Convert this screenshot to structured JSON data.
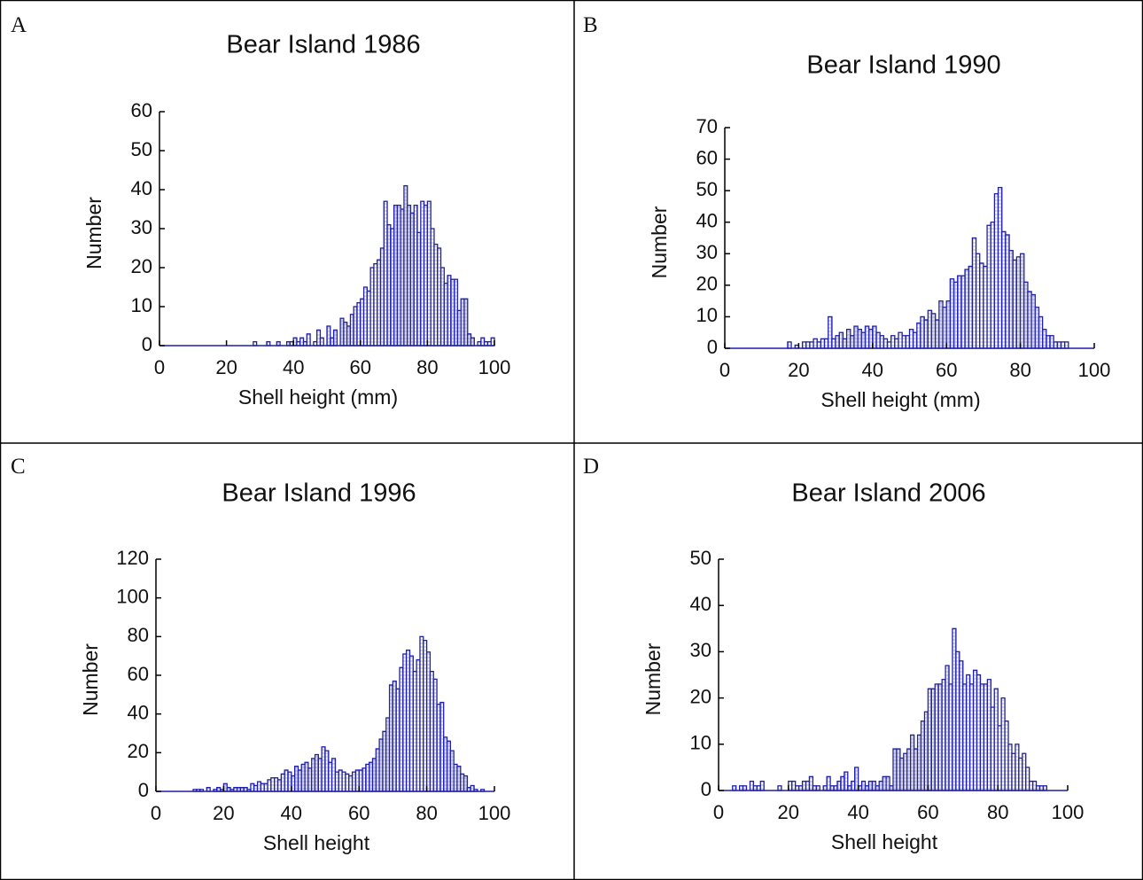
{
  "chart_data": [
    {
      "type": "histogram",
      "panel_label": "A",
      "title": "Bear Island 1986",
      "xlabel": "Shell height (mm)",
      "ylabel": "Number",
      "color": "#1f1fa8",
      "xlim": [
        0,
        100
      ],
      "xticks": [
        0,
        20,
        40,
        60,
        80,
        100
      ],
      "ylim": [
        0,
        60
      ],
      "yticks": [
        0,
        10,
        20,
        30,
        40,
        50,
        60
      ],
      "bins": [
        28,
        29,
        30,
        31,
        32,
        33,
        34,
        35,
        36,
        37,
        38,
        39,
        40,
        41,
        42,
        43,
        44,
        45,
        46,
        47,
        48,
        49,
        50,
        51,
        52,
        53,
        54,
        55,
        56,
        57,
        58,
        59,
        60,
        61,
        62,
        63,
        64,
        65,
        66,
        67,
        68,
        69,
        70,
        71,
        72,
        73,
        74,
        75,
        76,
        77,
        78,
        79,
        80,
        81,
        82,
        83,
        84,
        85,
        86,
        87,
        88,
        89,
        90,
        91,
        92,
        93,
        94,
        95,
        96,
        97,
        98,
        99,
        100
      ],
      "values": [
        1,
        0,
        0,
        0,
        1,
        0,
        0,
        1,
        0,
        0,
        1,
        1,
        2,
        1,
        2,
        1,
        3,
        0,
        1,
        4,
        2,
        0,
        5,
        2,
        4,
        0,
        7,
        6,
        5,
        8,
        10,
        11,
        12,
        15,
        14,
        20,
        21,
        22,
        25,
        37,
        31,
        30,
        36,
        36,
        35,
        41,
        36,
        34,
        36,
        29,
        37,
        36,
        37,
        30,
        26,
        25,
        20,
        16,
        18,
        17,
        17,
        9,
        12,
        12,
        3,
        2,
        0,
        1,
        2,
        1,
        1,
        2
      ]
    },
    {
      "type": "histogram",
      "panel_label": "B",
      "title": "Bear Island 1990",
      "xlabel": "Shell height (mm)",
      "ylabel": "Number",
      "color": "#1f1fa8",
      "xlim": [
        0,
        100
      ],
      "xticks": [
        0,
        20,
        40,
        60,
        80,
        100
      ],
      "ylim": [
        0,
        70
      ],
      "yticks": [
        0,
        10,
        20,
        30,
        40,
        50,
        60,
        70
      ],
      "bins": [
        17,
        18,
        19,
        20,
        21,
        22,
        23,
        24,
        25,
        26,
        27,
        28,
        29,
        30,
        31,
        32,
        33,
        34,
        35,
        36,
        37,
        38,
        39,
        40,
        41,
        42,
        43,
        44,
        45,
        46,
        47,
        48,
        49,
        50,
        51,
        52,
        53,
        54,
        55,
        56,
        57,
        58,
        59,
        60,
        61,
        62,
        63,
        64,
        65,
        66,
        67,
        68,
        69,
        70,
        71,
        72,
        73,
        74,
        75,
        76,
        77,
        78,
        79,
        80,
        81,
        82,
        83,
        84,
        85,
        86,
        87,
        88,
        89,
        90,
        91,
        92,
        93
      ],
      "values": [
        2,
        0,
        1,
        0,
        2,
        2,
        2,
        3,
        2,
        3,
        3,
        10,
        3,
        4,
        5,
        3,
        6,
        4,
        7,
        6,
        5,
        7,
        6,
        7,
        5,
        4,
        3,
        2,
        4,
        3,
        5,
        4,
        4,
        6,
        5,
        8,
        10,
        9,
        12,
        11,
        9,
        15,
        13,
        15,
        22,
        21,
        23,
        23,
        25,
        26,
        35,
        30,
        27,
        26,
        39,
        40,
        49,
        51,
        37,
        36,
        31,
        28,
        29,
        30,
        21,
        18,
        17,
        13,
        10,
        6,
        4,
        4,
        2,
        2,
        2,
        2
      ]
    },
    {
      "type": "histogram",
      "panel_label": "C",
      "title": "Bear Island 1996",
      "xlabel": "Shell height",
      "ylabel": "Number",
      "color": "#1f1fa8",
      "xlim": [
        0,
        100
      ],
      "xticks": [
        0,
        20,
        40,
        60,
        80,
        100
      ],
      "ylim": [
        0,
        120
      ],
      "yticks": [
        0,
        20,
        40,
        60,
        80,
        100,
        120
      ],
      "bins": [
        11,
        12,
        13,
        14,
        15,
        16,
        17,
        18,
        19,
        20,
        21,
        22,
        23,
        24,
        25,
        26,
        27,
        28,
        29,
        30,
        31,
        32,
        33,
        34,
        35,
        36,
        37,
        38,
        39,
        40,
        41,
        42,
        43,
        44,
        45,
        46,
        47,
        48,
        49,
        50,
        51,
        52,
        53,
        54,
        55,
        56,
        57,
        58,
        59,
        60,
        61,
        62,
        63,
        64,
        65,
        66,
        67,
        68,
        69,
        70,
        71,
        72,
        73,
        74,
        75,
        76,
        77,
        78,
        79,
        80,
        81,
        82,
        83,
        84,
        85,
        86,
        87,
        88,
        89,
        90,
        91,
        92,
        93,
        94,
        95,
        96,
        97
      ],
      "values": [
        1,
        1,
        1,
        0,
        2,
        0,
        1,
        2,
        1,
        4,
        2,
        1,
        2,
        2,
        2,
        2,
        1,
        4,
        3,
        5,
        4,
        4,
        6,
        7,
        7,
        6,
        9,
        11,
        10,
        8,
        13,
        11,
        14,
        15,
        12,
        17,
        19,
        17,
        23,
        21,
        15,
        17,
        10,
        11,
        10,
        9,
        8,
        10,
        11,
        11,
        12,
        14,
        15,
        17,
        22,
        27,
        31,
        38,
        55,
        57,
        53,
        64,
        71,
        73,
        70,
        62,
        68,
        80,
        78,
        72,
        62,
        58,
        45,
        46,
        28,
        26,
        21,
        14,
        13,
        9,
        8,
        2,
        3,
        1,
        0,
        1
      ]
    },
    {
      "type": "histogram",
      "panel_label": "D",
      "title": "Bear Island 2006",
      "xlabel": "Shell height",
      "ylabel": "Number",
      "color": "#1f1fa8",
      "xlim": [
        0,
        100
      ],
      "xticks": [
        0,
        20,
        40,
        60,
        80,
        100
      ],
      "ylim": [
        0,
        50
      ],
      "yticks": [
        0,
        10,
        20,
        30,
        40,
        50
      ],
      "bins": [
        4,
        5,
        6,
        7,
        8,
        9,
        10,
        11,
        12,
        13,
        14,
        15,
        16,
        17,
        18,
        19,
        20,
        21,
        22,
        23,
        24,
        25,
        26,
        27,
        28,
        29,
        30,
        31,
        32,
        33,
        34,
        35,
        36,
        37,
        38,
        39,
        40,
        41,
        42,
        43,
        44,
        45,
        46,
        47,
        48,
        49,
        50,
        51,
        52,
        53,
        54,
        55,
        56,
        57,
        58,
        59,
        60,
        61,
        62,
        63,
        64,
        65,
        66,
        67,
        68,
        69,
        70,
        71,
        72,
        73,
        74,
        75,
        76,
        77,
        78,
        79,
        80,
        81,
        82,
        83,
        84,
        85,
        86,
        87,
        88,
        89,
        90,
        91,
        92,
        93,
        94
      ],
      "values": [
        1,
        0,
        1,
        1,
        0,
        2,
        1,
        1,
        2,
        0,
        0,
        0,
        0,
        1,
        0,
        0,
        2,
        2,
        1,
        1,
        2,
        2,
        3,
        1,
        1,
        0,
        1,
        3,
        1,
        1,
        2,
        3,
        4,
        1,
        2,
        5,
        1,
        2,
        1,
        2,
        2,
        1,
        2,
        3,
        3,
        1,
        9,
        9,
        7,
        8,
        9,
        12,
        9,
        12,
        15,
        17,
        22,
        22,
        23,
        23,
        24,
        27,
        23,
        35,
        30,
        28,
        23,
        25,
        23,
        26,
        25,
        23,
        23,
        24,
        18,
        22,
        14,
        20,
        15,
        10,
        8,
        10,
        7,
        8,
        5,
        2,
        2,
        1,
        1,
        1
      ]
    }
  ]
}
